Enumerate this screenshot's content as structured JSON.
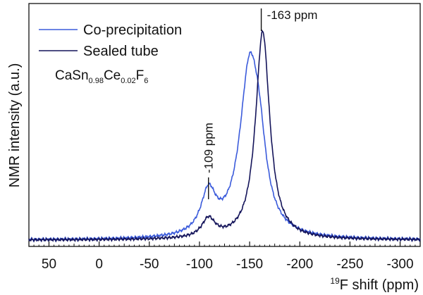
{
  "chart_data": {
    "type": "line",
    "title": "",
    "xlabel_sup": "19",
    "xlabel": "F shift (ppm)",
    "ylabel": "NMR intensity (a.u.)",
    "xlim": [
      70,
      -320
    ],
    "ylim": [
      0,
      1.08
    ],
    "x_reversed": true,
    "grid": false,
    "x_ticks": [
      50,
      0,
      -50,
      -100,
      -150,
      -200,
      -250,
      -300
    ],
    "x_tick_labels": [
      "50",
      "0",
      "-50",
      "-100",
      "-150",
      "-200",
      "-250",
      "-300"
    ],
    "legend_position": "top-left",
    "series": [
      {
        "name": "Co-precipitation",
        "color": "#3b5bdb",
        "peaks": [
          {
            "center": -109,
            "width": 9,
            "height": 0.2
          },
          {
            "center": -150,
            "width": 12,
            "height": 0.8
          },
          {
            "center": -160,
            "width": 8,
            "height": 0.22
          }
        ]
      },
      {
        "name": "Sealed tube",
        "color": "#14145a",
        "peaks": [
          {
            "center": -109,
            "width": 8,
            "height": 0.09
          },
          {
            "center": -163,
            "width": 8.5,
            "height": 1.0
          }
        ]
      }
    ],
    "annotations": [
      {
        "text": "-163 ppm",
        "x": -163
      },
      {
        "text": "-109 ppm",
        "x": -109
      }
    ],
    "compound": {
      "parts": [
        {
          "t": "CaSn",
          "sub": false
        },
        {
          "t": "0.98",
          "sub": true
        },
        {
          "t": "Ce",
          "sub": false
        },
        {
          "t": "0.02",
          "sub": true
        },
        {
          "t": "F",
          "sub": false
        },
        {
          "t": "6",
          "sub": true
        }
      ]
    }
  }
}
